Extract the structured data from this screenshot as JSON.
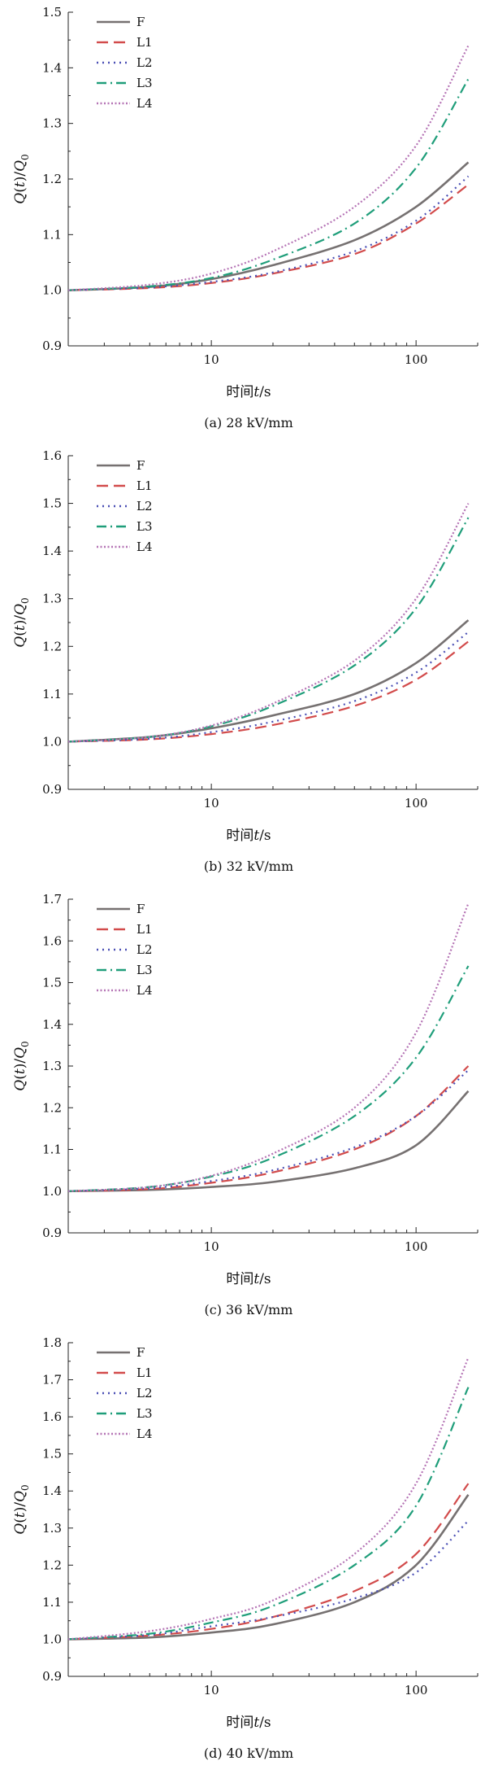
{
  "chart_data": [
    {
      "type": "line",
      "caption": "(a) 28 kV/mm",
      "xlabel_prefix": "时间",
      "xlabel_var": "t",
      "xlabel_unit": "/s",
      "ylabel": "Q(t)/Q0",
      "xscale": "log",
      "xlim": [
        2,
        200
      ],
      "ylim": [
        0.9,
        1.5
      ],
      "xticks": [
        10,
        100
      ],
      "xtick_labels": [
        "10",
        "100"
      ],
      "yticks": [
        0.9,
        1.0,
        1.1,
        1.2,
        1.3,
        1.4,
        1.5
      ],
      "ytick_labels": [
        "0.9",
        "1.0",
        "1.1",
        "1.2",
        "1.3",
        "1.4",
        "1.5"
      ],
      "legend_position": "top-left",
      "series": [
        {
          "name": "F",
          "color": "#767171",
          "dash": "solid",
          "x": [
            2,
            5,
            10,
            20,
            50,
            100,
            180
          ],
          "y": [
            1.0,
            1.006,
            1.02,
            1.045,
            1.09,
            1.15,
            1.23
          ]
        },
        {
          "name": "L1",
          "color": "#d24b4b",
          "dash": "dash",
          "x": [
            2,
            5,
            10,
            20,
            50,
            100,
            180
          ],
          "y": [
            1.0,
            1.004,
            1.013,
            1.03,
            1.065,
            1.12,
            1.19
          ]
        },
        {
          "name": "L2",
          "color": "#4a4fb5",
          "dash": "dot",
          "x": [
            2,
            5,
            10,
            20,
            50,
            100,
            180
          ],
          "y": [
            1.0,
            1.005,
            1.015,
            1.032,
            1.07,
            1.125,
            1.205
          ]
        },
        {
          "name": "L3",
          "color": "#1f9e7a",
          "dash": "dashdot",
          "x": [
            2,
            5,
            10,
            20,
            50,
            100,
            180
          ],
          "y": [
            1.0,
            1.007,
            1.022,
            1.055,
            1.12,
            1.22,
            1.38
          ]
        },
        {
          "name": "L4",
          "color": "#b574b5",
          "dash": "dense",
          "x": [
            2,
            5,
            10,
            20,
            50,
            100,
            180
          ],
          "y": [
            1.0,
            1.01,
            1.03,
            1.07,
            1.15,
            1.26,
            1.44
          ]
        }
      ]
    },
    {
      "type": "line",
      "caption": "(b) 32 kV/mm",
      "xlabel_prefix": "时间",
      "xlabel_var": "t",
      "xlabel_unit": "/s",
      "ylabel": "Q(t)/Q0",
      "xscale": "log",
      "xlim": [
        2,
        200
      ],
      "ylim": [
        0.9,
        1.6
      ],
      "xticks": [
        10,
        100
      ],
      "xtick_labels": [
        "10",
        "100"
      ],
      "yticks": [
        0.9,
        1.0,
        1.1,
        1.2,
        1.3,
        1.4,
        1.5,
        1.6
      ],
      "ytick_labels": [
        "0.9",
        "1.0",
        "1.1",
        "1.2",
        "1.3",
        "1.4",
        "1.5",
        "1.6"
      ],
      "legend_position": "top-left",
      "series": [
        {
          "name": "F",
          "color": "#767171",
          "dash": "solid",
          "x": [
            2,
            5,
            10,
            20,
            50,
            100,
            180
          ],
          "y": [
            1.0,
            1.01,
            1.028,
            1.055,
            1.1,
            1.165,
            1.255
          ]
        },
        {
          "name": "L1",
          "color": "#d24b4b",
          "dash": "dash",
          "x": [
            2,
            5,
            10,
            20,
            50,
            100,
            180
          ],
          "y": [
            1.0,
            1.005,
            1.016,
            1.035,
            1.075,
            1.13,
            1.21
          ]
        },
        {
          "name": "L2",
          "color": "#4a4fb5",
          "dash": "dot",
          "x": [
            2,
            5,
            10,
            20,
            50,
            100,
            180
          ],
          "y": [
            1.0,
            1.006,
            1.02,
            1.042,
            1.085,
            1.145,
            1.23
          ]
        },
        {
          "name": "L3",
          "color": "#1f9e7a",
          "dash": "dashdot",
          "x": [
            2,
            5,
            10,
            20,
            50,
            100,
            180
          ],
          "y": [
            1.0,
            1.01,
            1.032,
            1.075,
            1.16,
            1.28,
            1.47
          ]
        },
        {
          "name": "L4",
          "color": "#b574b5",
          "dash": "dense",
          "x": [
            2,
            5,
            10,
            20,
            50,
            100,
            180
          ],
          "y": [
            1.0,
            1.01,
            1.034,
            1.08,
            1.17,
            1.3,
            1.5
          ]
        }
      ]
    },
    {
      "type": "line",
      "caption": "(c) 36 kV/mm",
      "xlabel_prefix": "时间",
      "xlabel_var": "t",
      "xlabel_unit": "/s",
      "ylabel": "Q(t)/Q0",
      "xscale": "log",
      "xlim": [
        2,
        200
      ],
      "ylim": [
        0.9,
        1.7
      ],
      "xticks": [
        10,
        100
      ],
      "xtick_labels": [
        "10",
        "100"
      ],
      "yticks": [
        0.9,
        1.0,
        1.1,
        1.2,
        1.3,
        1.4,
        1.5,
        1.6,
        1.7
      ],
      "ytick_labels": [
        "0.9",
        "1.0",
        "1.1",
        "1.2",
        "1.3",
        "1.4",
        "1.5",
        "1.6",
        "1.7"
      ],
      "legend_position": "top-left",
      "series": [
        {
          "name": "F",
          "color": "#767171",
          "dash": "solid",
          "x": [
            2,
            5,
            10,
            20,
            50,
            100,
            180
          ],
          "y": [
            1.0,
            1.003,
            1.01,
            1.022,
            1.055,
            1.11,
            1.24
          ]
        },
        {
          "name": "L1",
          "color": "#d24b4b",
          "dash": "dash",
          "x": [
            2,
            5,
            10,
            20,
            50,
            100,
            180
          ],
          "y": [
            1.0,
            1.005,
            1.02,
            1.045,
            1.1,
            1.18,
            1.3
          ]
        },
        {
          "name": "L2",
          "color": "#4a4fb5",
          "dash": "dot",
          "x": [
            2,
            5,
            10,
            20,
            50,
            100,
            180
          ],
          "y": [
            1.0,
            1.007,
            1.024,
            1.05,
            1.105,
            1.18,
            1.29
          ]
        },
        {
          "name": "L3",
          "color": "#1f9e7a",
          "dash": "dashdot",
          "x": [
            2,
            5,
            10,
            20,
            50,
            100,
            180
          ],
          "y": [
            1.0,
            1.01,
            1.035,
            1.08,
            1.18,
            1.32,
            1.54
          ]
        },
        {
          "name": "L4",
          "color": "#b574b5",
          "dash": "dense",
          "x": [
            2,
            5,
            10,
            20,
            50,
            100,
            180
          ],
          "y": [
            1.0,
            1.01,
            1.037,
            1.09,
            1.2,
            1.38,
            1.69
          ]
        }
      ]
    },
    {
      "type": "line",
      "caption": "(d) 40 kV/mm",
      "xlabel_prefix": "时间",
      "xlabel_var": "t",
      "xlabel_unit": "/s",
      "ylabel": "Q(t)/Q0",
      "xscale": "log",
      "xlim": [
        2,
        200
      ],
      "ylim": [
        0.9,
        1.8
      ],
      "xticks": [
        10,
        100
      ],
      "xtick_labels": [
        "10",
        "100"
      ],
      "yticks": [
        0.9,
        1.0,
        1.1,
        1.2,
        1.3,
        1.4,
        1.5,
        1.6,
        1.7,
        1.8
      ],
      "ytick_labels": [
        "0.9",
        "1.0",
        "1.1",
        "1.2",
        "1.3",
        "1.4",
        "1.5",
        "1.6",
        "1.7",
        "1.8"
      ],
      "legend_position": "top-left",
      "series": [
        {
          "name": "F",
          "color": "#767171",
          "dash": "solid",
          "x": [
            2,
            5,
            10,
            20,
            50,
            100,
            180
          ],
          "y": [
            1.0,
            1.005,
            1.018,
            1.04,
            1.1,
            1.2,
            1.39
          ]
        },
        {
          "name": "L1",
          "color": "#d24b4b",
          "dash": "dash",
          "x": [
            2,
            5,
            10,
            20,
            50,
            100,
            180
          ],
          "y": [
            1.0,
            1.01,
            1.028,
            1.06,
            1.13,
            1.23,
            1.42
          ]
        },
        {
          "name": "L2",
          "color": "#4a4fb5",
          "dash": "dot",
          "x": [
            2,
            5,
            10,
            20,
            50,
            100,
            180
          ],
          "y": [
            1.0,
            1.012,
            1.035,
            1.06,
            1.11,
            1.18,
            1.32
          ]
        },
        {
          "name": "L3",
          "color": "#1f9e7a",
          "dash": "dashdot",
          "x": [
            2,
            5,
            10,
            20,
            50,
            100,
            180
          ],
          "y": [
            1.0,
            1.015,
            1.045,
            1.09,
            1.2,
            1.36,
            1.68
          ]
        },
        {
          "name": "L4",
          "color": "#b574b5",
          "dash": "dense",
          "x": [
            2,
            5,
            10,
            20,
            50,
            100,
            180
          ],
          "y": [
            1.0,
            1.022,
            1.055,
            1.105,
            1.23,
            1.42,
            1.76
          ]
        }
      ]
    }
  ]
}
